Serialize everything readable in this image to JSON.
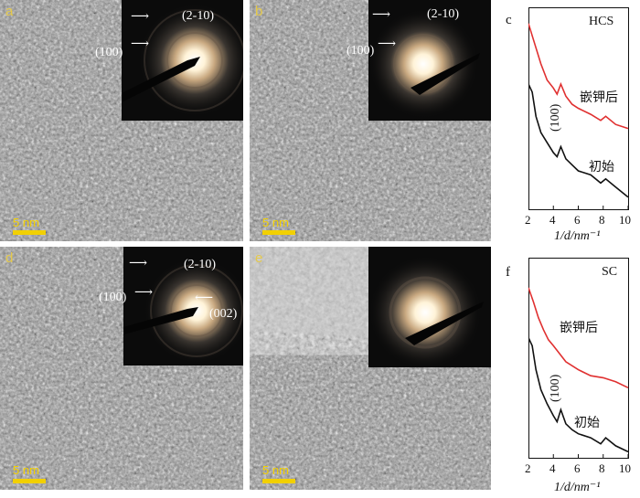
{
  "panels": {
    "a": {
      "label": "a",
      "scale": "5 nm",
      "saed": {
        "ann1": "(2-10)",
        "ann2": "(100)"
      }
    },
    "b": {
      "label": "b",
      "scale": "5 nm",
      "saed": {
        "ann1": "(2-10)",
        "ann2": "(100)"
      }
    },
    "d": {
      "label": "d",
      "scale": "5 nm",
      "saed": {
        "ann1": "(2-10)",
        "ann2": "(100)",
        "ann3": "(002)"
      }
    },
    "e": {
      "label": "e",
      "scale": "5 nm"
    }
  },
  "plots": {
    "c": {
      "label": "c",
      "sample": "HCS",
      "upper_curve_label": "嵌钾后",
      "lower_curve_label": "初始",
      "peak_label": "(100)",
      "xlabel": "1/d/nm⁻¹"
    },
    "f": {
      "label": "f",
      "sample": "SC",
      "upper_curve_label": "嵌钾后",
      "lower_curve_label": "初始",
      "peak_label": "(100)",
      "xlabel": "1/d/nm⁻¹"
    }
  },
  "xticks": [
    "2",
    "4",
    "6",
    "8",
    "10"
  ],
  "colors": {
    "upper_curve": "#e03030",
    "lower_curve": "#111111",
    "scale_bar": "#f2d000"
  },
  "chart_data": [
    {
      "type": "line",
      "title": "HCS",
      "xlabel": "1/d/nm⁻¹",
      "ylabel": "",
      "xlim": [
        2,
        10
      ],
      "series": [
        {
          "name": "嵌钾后",
          "x": [
            2,
            2.5,
            3,
            3.5,
            4,
            4.3,
            4.6,
            5,
            5.5,
            6,
            7,
            7.8,
            8.2,
            9,
            10
          ],
          "y": [
            0.92,
            0.82,
            0.72,
            0.64,
            0.6,
            0.57,
            0.62,
            0.56,
            0.52,
            0.5,
            0.47,
            0.44,
            0.46,
            0.42,
            0.4
          ]
        },
        {
          "name": "初始",
          "x": [
            2,
            2.3,
            2.6,
            3,
            3.5,
            4,
            4.3,
            4.6,
            5,
            5.5,
            6,
            7,
            7.8,
            8.2,
            9,
            10
          ],
          "y": [
            0.62,
            0.58,
            0.46,
            0.38,
            0.33,
            0.28,
            0.26,
            0.31,
            0.25,
            0.22,
            0.19,
            0.17,
            0.13,
            0.15,
            0.11,
            0.06
          ]
        }
      ]
    },
    {
      "type": "line",
      "title": "SC",
      "xlabel": "1/d/nm⁻¹",
      "ylabel": "",
      "xlim": [
        2,
        10
      ],
      "series": [
        {
          "name": "嵌钾后",
          "x": [
            2,
            2.4,
            2.8,
            3.2,
            3.6,
            4,
            4.5,
            5,
            6,
            7,
            8,
            9,
            10
          ],
          "y": [
            0.85,
            0.78,
            0.7,
            0.64,
            0.59,
            0.56,
            0.52,
            0.48,
            0.44,
            0.41,
            0.4,
            0.38,
            0.35
          ]
        },
        {
          "name": "初始",
          "x": [
            2,
            2.3,
            2.6,
            3,
            3.5,
            4,
            4.3,
            4.6,
            5,
            5.5,
            6,
            7,
            7.8,
            8.2,
            9,
            10
          ],
          "y": [
            0.6,
            0.56,
            0.44,
            0.34,
            0.27,
            0.21,
            0.18,
            0.24,
            0.17,
            0.14,
            0.12,
            0.1,
            0.07,
            0.1,
            0.06,
            0.03
          ]
        }
      ]
    }
  ]
}
